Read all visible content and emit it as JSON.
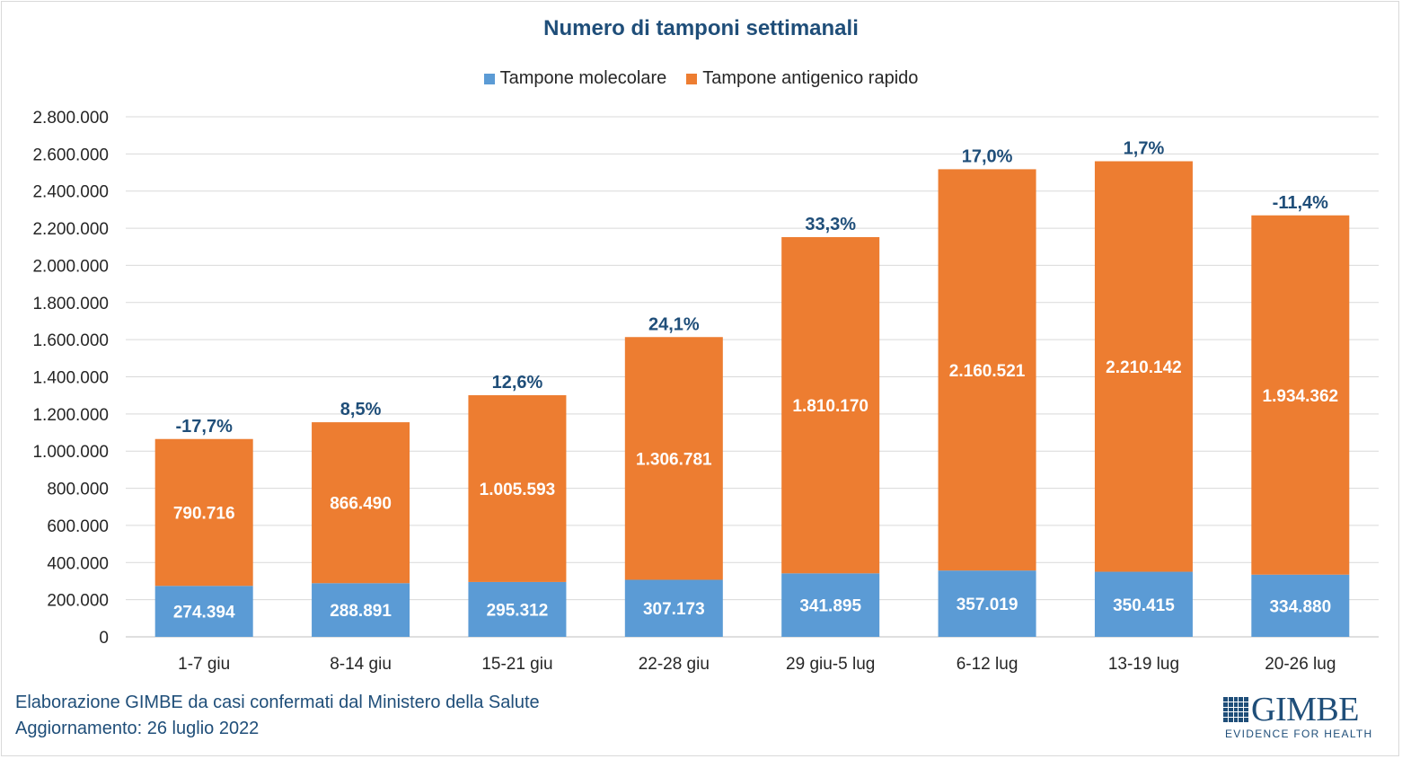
{
  "chart_data": {
    "type": "bar",
    "stacked": true,
    "title": "Numero di tamponi settimanali",
    "categories": [
      "1-7 giu",
      "8-14 giu",
      "15-21 giu",
      "22-28 giu",
      "29 giu-5 lug",
      "6-12 lug",
      "13-19 lug",
      "20-26 lug"
    ],
    "series": [
      {
        "name": "Tampone molecolare",
        "color": "#5b9bd5",
        "values": [
          274394,
          288891,
          295312,
          307173,
          341895,
          357019,
          350415,
          334880
        ],
        "labels": [
          "274.394",
          "288.891",
          "295.312",
          "307.173",
          "341.895",
          "357.019",
          "350.415",
          "334.880"
        ]
      },
      {
        "name": "Tampone antigenico rapido",
        "color": "#ed7d31",
        "values": [
          790716,
          866490,
          1005593,
          1306781,
          1810170,
          2160521,
          2210142,
          1934362
        ],
        "labels": [
          "790.716",
          "866.490",
          "1.005.593",
          "1.306.781",
          "1.810.170",
          "2.160.521",
          "2.210.142",
          "1.934.362"
        ]
      }
    ],
    "total_change_labels": [
      "-17,7%",
      "8,5%",
      "12,6%",
      "24,1%",
      "33,3%",
      "17,0%",
      "1,7%",
      "-11,4%"
    ],
    "ylim": [
      0,
      2800000
    ],
    "yticks": [
      0,
      200000,
      400000,
      600000,
      800000,
      1000000,
      1200000,
      1400000,
      1600000,
      1800000,
      2000000,
      2200000,
      2400000,
      2600000,
      2800000
    ],
    "ytick_labels": [
      "0",
      "200.000",
      "400.000",
      "600.000",
      "800.000",
      "1.000.000",
      "1.200.000",
      "1.400.000",
      "1.600.000",
      "1.800.000",
      "2.000.000",
      "2.200.000",
      "2.400.000",
      "2.600.000",
      "2.800.000"
    ],
    "legend_position": "top",
    "grid": true,
    "label_color": "#1f4e79"
  },
  "footer": {
    "line1": "Elaborazione GIMBE da casi confermati dal Ministero della Salute",
    "line2": "Aggiornamento: 26 luglio 2022"
  },
  "logo": {
    "word": "GIMBE",
    "tagline": "EVIDENCE FOR HEALTH"
  }
}
